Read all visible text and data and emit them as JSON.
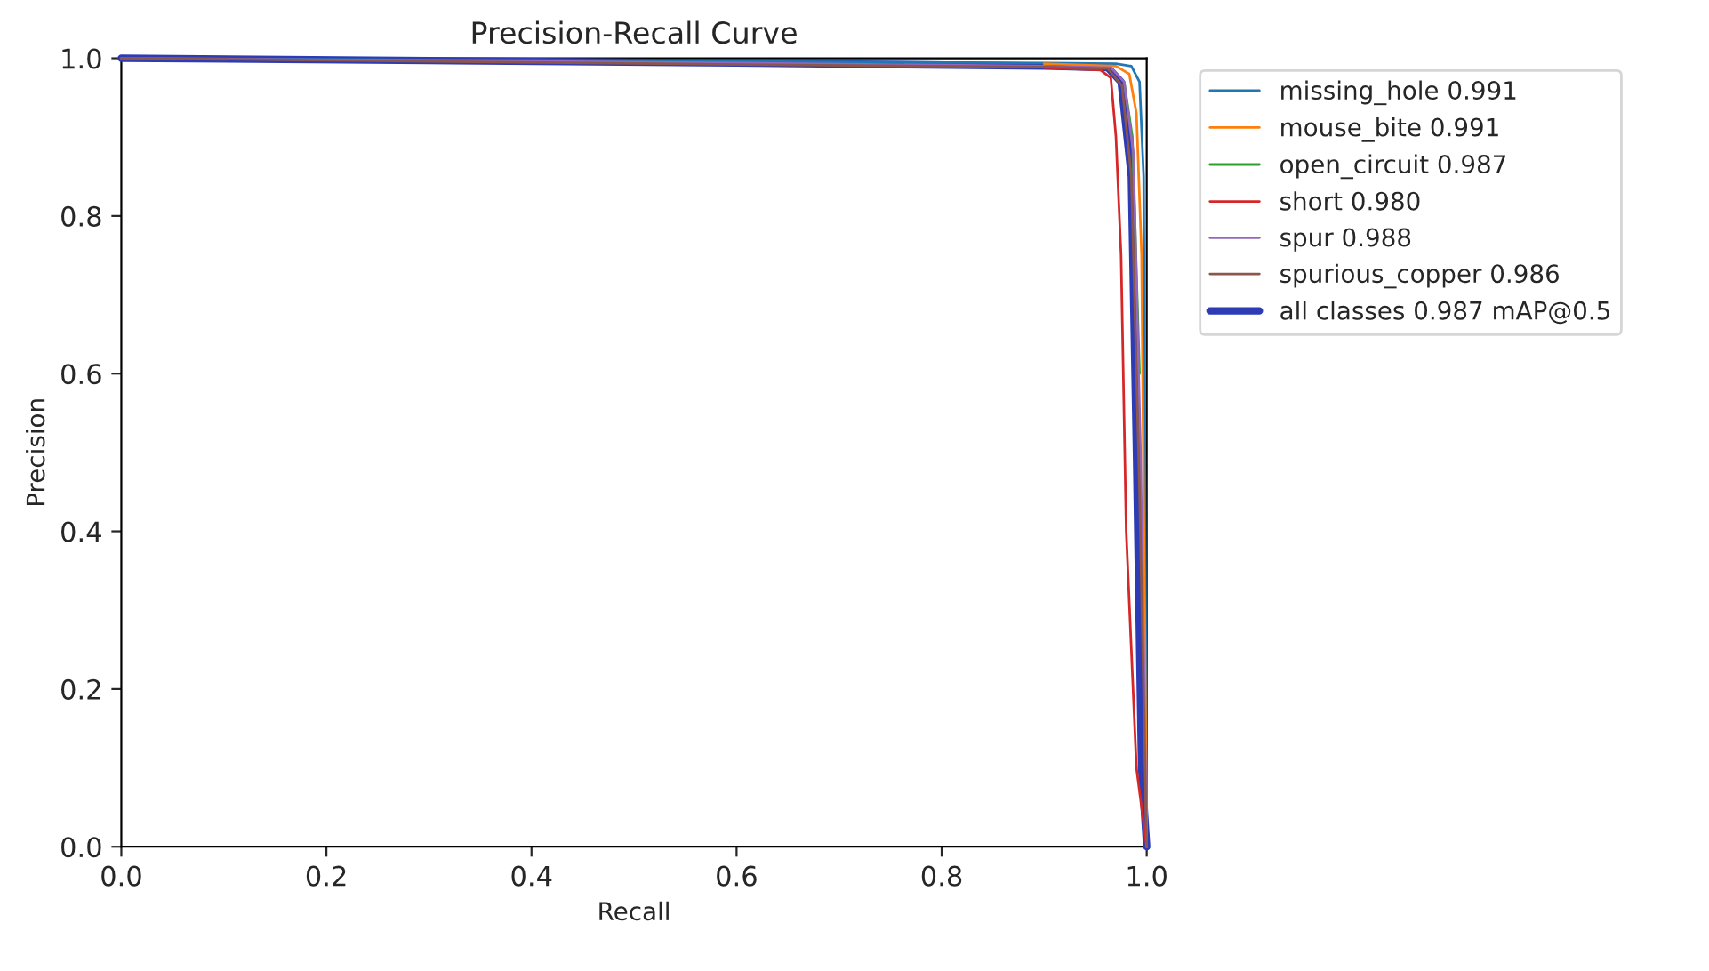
{
  "chart_data": {
    "type": "line",
    "title": "Precision-Recall Curve",
    "xlabel": "Recall",
    "ylabel": "Precision",
    "xlim": [
      0.0,
      1.0
    ],
    "ylim": [
      0.0,
      1.0
    ],
    "xticks": [
      {
        "value": 0,
        "label": "0.0"
      },
      0.2,
      0.4,
      0.6,
      0.8,
      {
        "value": 1,
        "label": "1.0"
      }
    ],
    "yticks": [
      {
        "value": 0,
        "label": "0.0"
      },
      0.2,
      0.4,
      0.6,
      0.8,
      {
        "value": 1,
        "label": "1.0"
      }
    ],
    "legend": "top right",
    "grid": false,
    "series": [
      {
        "name": "missing_hole 0.991",
        "color": "#1f77b4",
        "x": [
          0,
          0.3,
          0.6,
          0.9,
          0.97,
          0.985,
          0.993,
          0.997,
          1.0
        ],
        "values": [
          1.0,
          0.998,
          0.996,
          0.994,
          0.993,
          0.99,
          0.97,
          0.85,
          0.0
        ]
      },
      {
        "name": "mouse_bite 0.991",
        "color": "#ff7f0e",
        "x": [
          0.9,
          0.97,
          0.983,
          0.99,
          0.995,
          1.0
        ],
        "values": [
          0.993,
          0.99,
          0.98,
          0.93,
          0.75,
          0.0
        ]
      },
      {
        "name": "open_circuit 0.987",
        "color": "#2ca02c",
        "x": [
          0.978,
          0.986,
          0.993
        ],
        "values": [
          0.97,
          0.9,
          0.6
        ]
      },
      {
        "name": "short 0.980",
        "color": "#d62728",
        "x": [
          0.9,
          0.955,
          0.965,
          0.97,
          0.975,
          0.98,
          0.99,
          1.0
        ],
        "values": [
          0.988,
          0.985,
          0.975,
          0.9,
          0.75,
          0.4,
          0.1,
          0.0
        ]
      },
      {
        "name": "spur 0.988",
        "color": "#9467bd",
        "x": [
          0,
          0.3,
          0.6,
          0.9,
          0.965,
          0.978,
          0.987,
          0.994,
          1.0
        ],
        "values": [
          1.0,
          0.997,
          0.994,
          0.99,
          0.988,
          0.97,
          0.88,
          0.5,
          0.0
        ]
      },
      {
        "name": "spurious_copper 0.986",
        "color": "#8c564b",
        "x": [
          0,
          0.3,
          0.6,
          0.9,
          0.962,
          0.976,
          0.985,
          0.993,
          1.0
        ],
        "values": [
          1.0,
          0.996,
          0.992,
          0.989,
          0.987,
          0.965,
          0.85,
          0.45,
          0.0
        ]
      },
      {
        "name": "all classes 0.987 mAP@0.5",
        "color": "#2d3bb5",
        "x": [
          0,
          0.3,
          0.6,
          0.9,
          0.962,
          0.975,
          0.985,
          0.99,
          0.995,
          1.0
        ],
        "values": [
          1.0,
          0.997,
          0.994,
          0.99,
          0.988,
          0.97,
          0.85,
          0.5,
          0.1,
          0.0
        ]
      }
    ]
  }
}
